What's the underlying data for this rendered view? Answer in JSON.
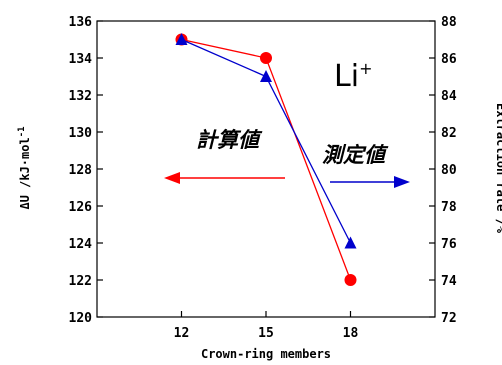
{
  "chart_data": {
    "type": "line",
    "xlabel": "Crown-ring members",
    "ylabel_left": "ΔU /kJ·mol",
    "ylabel_left_superscript": "-1",
    "ylabel_right": "Extraction rate /%",
    "x": [
      12,
      15,
      18
    ],
    "x_tick_labels": [
      "12",
      "15",
      "18"
    ],
    "xlim": [
      9,
      21
    ],
    "y_left_lim": [
      120,
      136
    ],
    "y_left_ticks": [
      120,
      122,
      124,
      126,
      128,
      130,
      132,
      134,
      136
    ],
    "y_right_lim": [
      72,
      88
    ],
    "y_right_ticks": [
      72,
      74,
      76,
      78,
      80,
      82,
      84,
      86,
      88
    ],
    "grid": false,
    "series": [
      {
        "key": "calc",
        "axis": "left",
        "color": "#ff0000",
        "marker": "circle",
        "values": [
          135,
          134,
          122
        ]
      },
      {
        "key": "meas",
        "axis": "right",
        "color": "#0000cc",
        "marker": "triangle",
        "values": [
          87,
          85,
          76
        ]
      }
    ],
    "annotations": {
      "ion_label": "Li",
      "ion_charge": "+",
      "calc_label": "計算値",
      "meas_label": "測定値"
    },
    "colors": {
      "calc": "#ff0000",
      "meas": "#0000cc",
      "axes": "#000000"
    }
  }
}
